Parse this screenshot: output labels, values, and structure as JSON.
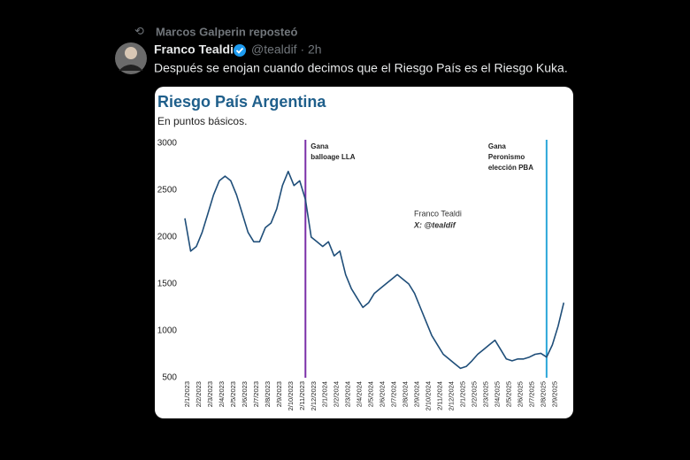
{
  "tweet": {
    "repost": "Marcos Galperin reposteó",
    "name": "Franco Tealdi",
    "handle_time": "@tealdif · 2h",
    "text": "Después se enojan cuando decimos que el Riesgo País es el Riesgo Kuka."
  },
  "chart_data": {
    "type": "line",
    "title": "Riesgo País Argentina",
    "subtitle": "En puntos básicos.",
    "watermark": [
      "Franco Tealdi",
      "X: @tealdif"
    ],
    "categories": [
      "2/1/2023",
      null,
      "2/2/2023",
      null,
      "2/3/2023",
      null,
      "2/4/2023",
      null,
      "2/5/2023",
      null,
      "2/6/2023",
      null,
      "2/7/2023",
      null,
      "2/8/2023",
      null,
      "2/9/2023",
      null,
      "2/10/2023",
      null,
      "2/11/2023",
      null,
      "2/12/2023",
      null,
      "2/1/2024",
      null,
      "2/2/2024",
      null,
      "2/3/2024",
      null,
      "2/4/2024",
      null,
      "2/5/2024",
      null,
      "2/6/2024",
      null,
      "2/7/2024",
      null,
      "2/8/2024",
      null,
      "2/9/2024",
      null,
      "2/10/2024",
      null,
      "2/11/2024",
      null,
      "2/12/2024",
      null,
      "2/1/2025",
      null,
      "2/2/2025",
      null,
      "2/3/2025",
      null,
      "2/4/2025",
      null,
      "2/5/2025",
      null,
      "2/6/2025",
      null,
      "2/7/2025",
      null,
      "2/8/2025",
      null,
      "2/9/2025",
      null,
      null
    ],
    "series": [
      {
        "color": "#1f4e79",
        "values": [
          2200,
          1850,
          1900,
          2050,
          2250,
          2450,
          2600,
          2650,
          2600,
          2450,
          2250,
          2050,
          1950,
          1950,
          2100,
          2150,
          2300,
          2550,
          2700,
          2550,
          2600,
          2400,
          2000,
          1950,
          1900,
          1950,
          1800,
          1850,
          1600,
          1450,
          1350,
          1250,
          1300,
          1400,
          1450,
          1500,
          1550,
          1600,
          1550,
          1500,
          1400,
          1250,
          1100,
          950,
          850,
          750,
          700,
          650,
          600,
          620,
          680,
          750,
          800,
          850,
          900,
          800,
          700,
          680,
          700,
          700,
          720,
          750,
          760,
          720,
          850,
          1050,
          1300
        ]
      }
    ],
    "ylim": [
      500,
      3000
    ],
    "yticks": [
      500,
      1000,
      1500,
      2000,
      2500,
      3000
    ],
    "grid": false,
    "annotations": [
      {
        "lines": [
          "Gana",
          "balloage LLA"
        ],
        "x_index": 21,
        "color": "#7b2fa8"
      },
      {
        "lines": [
          "Gana",
          "Peronismo",
          "elección PBA"
        ],
        "x_index": 63,
        "color": "#2ba6d9"
      }
    ]
  }
}
